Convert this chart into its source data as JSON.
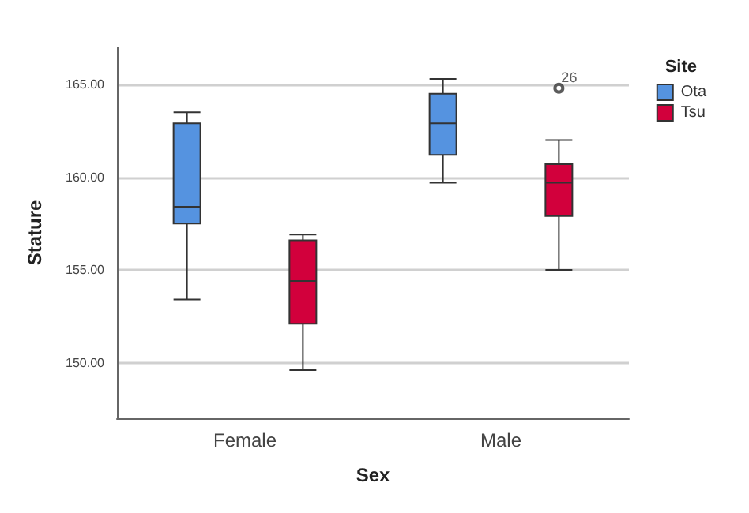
{
  "chart_data": {
    "type": "box",
    "xlabel": "Sex",
    "ylabel": "Stature",
    "legend_title": "Site",
    "categories": [
      "Female",
      "Male"
    ],
    "series": [
      {
        "name": "Ota",
        "color": "#5593e0",
        "boxes": [
          {
            "low": 153.4,
            "q1": 157.5,
            "median": 158.4,
            "q3": 162.9,
            "high": 163.5
          },
          {
            "low": 159.7,
            "q1": 161.2,
            "median": 162.9,
            "q3": 164.5,
            "high": 165.3
          }
        ]
      },
      {
        "name": "Tsu",
        "color": "#d2003c",
        "boxes": [
          {
            "low": 149.6,
            "q1": 152.1,
            "median": 154.4,
            "q3": 156.6,
            "high": 156.9
          },
          {
            "low": 155.0,
            "q1": 157.9,
            "median": 159.7,
            "q3": 160.7,
            "high": 162.0,
            "outliers": [
              164.8
            ]
          }
        ]
      }
    ],
    "ylim": [
      147,
      167
    ],
    "yticks": [
      {
        "value": 150,
        "label": "150.00"
      },
      {
        "value": 155,
        "label": "155.00"
      },
      {
        "value": 160,
        "label": "160.00"
      },
      {
        "value": 165,
        "label": "165.00"
      }
    ],
    "grid": "y",
    "legend": "top right",
    "annotations": [
      "26"
    ]
  }
}
